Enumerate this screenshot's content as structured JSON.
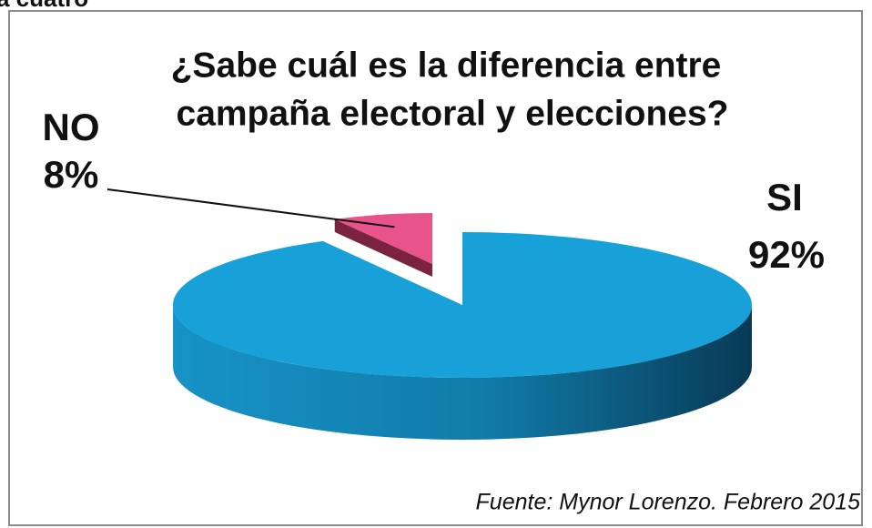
{
  "chart_data": {
    "type": "pie3d",
    "header": "a cuatro",
    "title": [
      "¿Sabe cuál es la diferencia entre",
      "campaña electoral y elecciones?"
    ],
    "categories": [
      "SI",
      "NO"
    ],
    "values": [
      92,
      8
    ],
    "value_labels": [
      "92%",
      "8%"
    ],
    "colors": [
      "#17a1d8",
      "#e8548a"
    ],
    "source": "Fuente: Mynor Lorenzo. Febrero 2015"
  }
}
